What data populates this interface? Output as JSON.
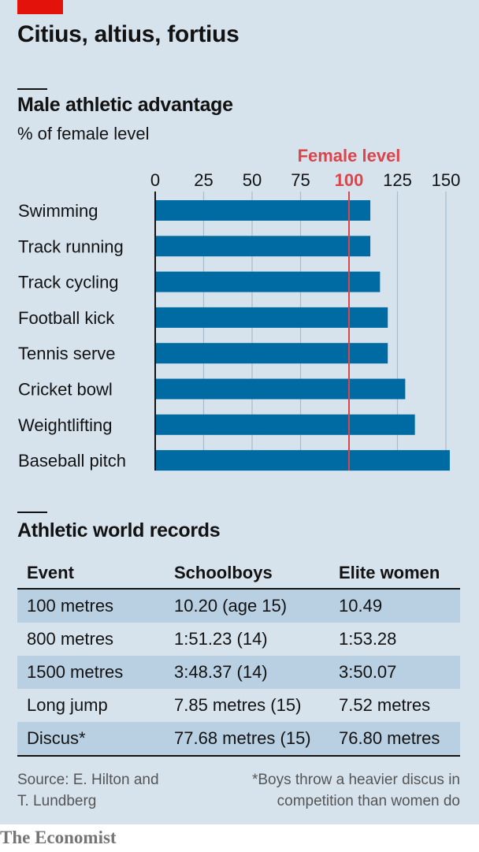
{
  "title": "Citius, altius, fortius",
  "chart_section": {
    "title": "Male athletic advantage",
    "subtitle": "% of female level"
  },
  "chart_data": {
    "type": "bar",
    "orientation": "horizontal",
    "title": "Male athletic advantage",
    "subtitle": "% of female level",
    "categories": [
      "Swimming",
      "Track running",
      "Track cycling",
      "Football kick",
      "Tennis serve",
      "Cricket bowl",
      "Weightlifting",
      "Baseball pitch"
    ],
    "values": [
      111,
      111,
      116,
      120,
      120,
      129,
      134,
      152
    ],
    "xlim": [
      0,
      150
    ],
    "ticks": [
      0,
      25,
      50,
      75,
      100,
      125,
      150
    ],
    "reference": {
      "value": 100,
      "label": "Female level",
      "color": "#db444b"
    },
    "bar_color": "#006ba2",
    "grid": true,
    "tick_position": "top"
  },
  "table": {
    "title": "Athletic world records",
    "headers": [
      "Event",
      "Schoolboys",
      "Elite women"
    ],
    "rows": [
      [
        "100 metres",
        "10.20 (age 15)",
        "10.49"
      ],
      [
        "800 metres",
        "1:51.23 (14)",
        "1:53.28"
      ],
      [
        "1500 metres",
        "3:48.37 (14)",
        "3:50.07"
      ],
      [
        "Long jump",
        "7.85 metres (15)",
        "7.52 metres"
      ],
      [
        "Discus*",
        "77.68 metres (15)",
        "76.80 metres"
      ]
    ]
  },
  "source": {
    "line1": "Source: E. Hilton and",
    "line2": "T. Lundberg"
  },
  "footnote": {
    "line1": "*Boys throw a heavier discus in",
    "line2": "competition than women do"
  },
  "brand": "The Economist"
}
